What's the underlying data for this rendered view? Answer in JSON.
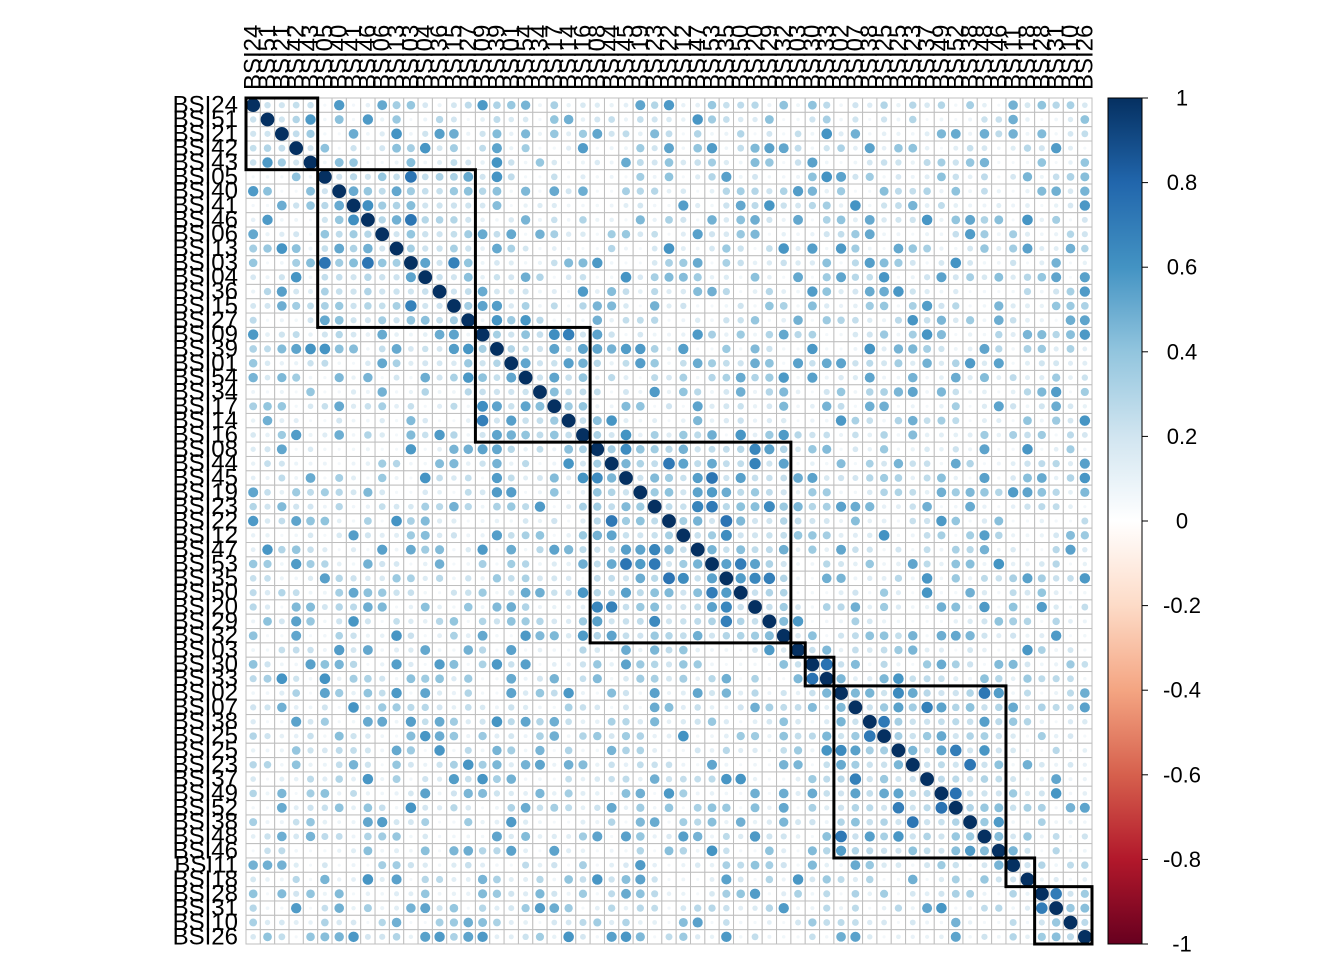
{
  "chart_data": {
    "type": "heatmap",
    "variables": [
      "BSI24",
      "BSI51",
      "BSI21",
      "BSI42",
      "BSI43",
      "BSI05",
      "BSI40",
      "BSI41",
      "BSI46",
      "BSI06",
      "BSI13",
      "BSI03",
      "BSI04",
      "BSI36",
      "BSI15",
      "BSI27",
      "BSI09",
      "BSI39",
      "BSI01",
      "BSI54",
      "BSI34",
      "BSI17",
      "BSI14",
      "BSI16",
      "BSI08",
      "BSI44",
      "BSI45",
      "BSI19",
      "BSI23",
      "BSI22",
      "BSI12",
      "BSI47",
      "BSI53",
      "BSI35",
      "BSI50",
      "BSI20",
      "BSI29",
      "BSI32",
      "BSI03",
      "BSI30",
      "BSI33",
      "BSI02",
      "BSI07",
      "BSI38",
      "BSI25",
      "BSI25",
      "BSI23",
      "BSI37",
      "BSI49",
      "BSI52",
      "BSI38",
      "BSI48",
      "BSI46",
      "BSI11",
      "BSI18",
      "BSI28",
      "BSI31",
      "BSI10",
      "BSI26"
    ],
    "diagonal_value": 1,
    "typical_offdiagonal_range": [
      0.05,
      0.6
    ],
    "clusters": [
      [
        0,
        4
      ],
      [
        5,
        15
      ],
      [
        16,
        23
      ],
      [
        24,
        37
      ],
      [
        38,
        38
      ],
      [
        39,
        40
      ],
      [
        41,
        52
      ],
      [
        53,
        54
      ],
      [
        55,
        58
      ]
    ],
    "color_scale": {
      "range": [
        -1,
        1
      ],
      "ticks": [
        "1",
        "0.8",
        "0.6",
        "0.4",
        "0.2",
        "0",
        "-0.2",
        "-0.4",
        "-0.6",
        "-0.8",
        "-1"
      ],
      "tick_values": [
        1,
        0.8,
        0.6,
        0.4,
        0.2,
        0,
        -0.2,
        -0.4,
        -0.6,
        -0.8,
        -1
      ],
      "low_color": "#67001f",
      "mid_color": "#ffffff",
      "high_color": "#053061"
    },
    "grid": true,
    "legend": "right"
  }
}
